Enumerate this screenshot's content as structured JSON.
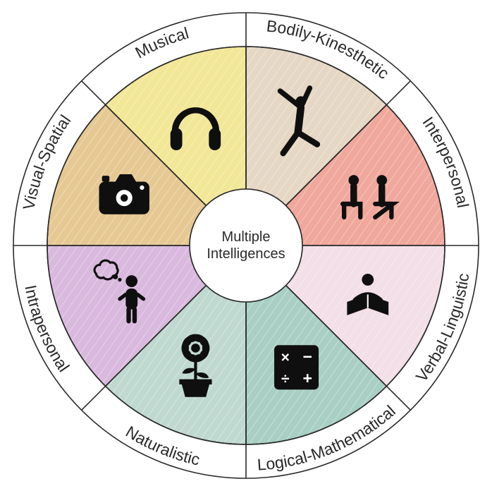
{
  "chart": {
    "type": "pie-wheel",
    "center_label_line1": "Multiple",
    "center_label_line2": "Intelligences",
    "center_fontsize": 20,
    "label_fontsize": 23,
    "background_color": "#ffffff",
    "outer_radius": 330,
    "label_ring_radius": 305,
    "inner_arc_radius": 282,
    "hub_radius": 80,
    "stroke_color": "#2a2a2a",
    "stroke_width": 1.6,
    "icon_color": "#0f0f0f",
    "hatch_color": "#ffffff",
    "hatch_opacity": 0.35,
    "slices": [
      {
        "label": "Bodily-Kinesthetic",
        "fill": "#e5d7c4",
        "icon": "dancer"
      },
      {
        "label": "Interpersonal",
        "fill": "#f0a79c",
        "icon": "two-people"
      },
      {
        "label": "Verbal-Linguistic",
        "fill": "#f3dfe7",
        "icon": "reader"
      },
      {
        "label": "Logical-Mathematical",
        "fill": "#a9cfc4",
        "icon": "math"
      },
      {
        "label": "Naturalistic",
        "fill": "#bfd9d0",
        "icon": "flower-pot"
      },
      {
        "label": "Intrapersonal",
        "fill": "#d9b9dd",
        "icon": "thinker"
      },
      {
        "label": "Visual-Spatial",
        "fill": "#e6c893",
        "icon": "camera"
      },
      {
        "label": "Musical",
        "fill": "#f2e796",
        "icon": "headphones"
      }
    ]
  }
}
